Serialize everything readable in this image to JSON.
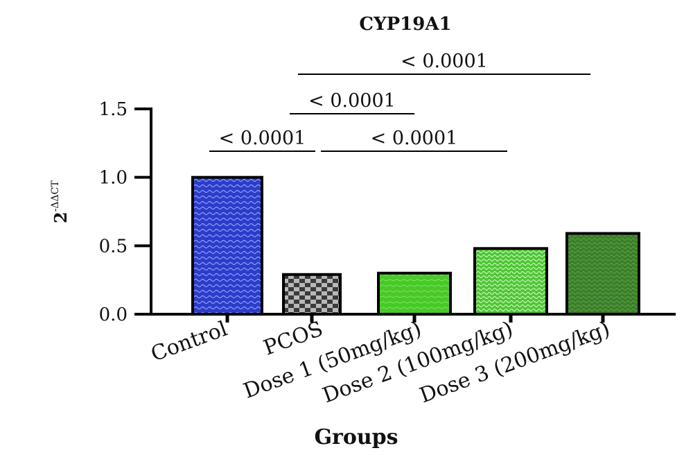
{
  "chart_data": {
    "type": "bar",
    "title": "CYP19A1",
    "xlabel": "Groups",
    "ylabel_base": "2",
    "ylabel_sup": "-ΔΔCT",
    "ylim": [
      0,
      1.5
    ],
    "yticks": [
      "0.0",
      "0.5",
      "1.0",
      "1.5"
    ],
    "ytick_values": [
      0,
      0.5,
      1.0,
      1.5
    ],
    "categories": [
      "Control",
      "PCOS",
      "Dose 1 (50mg/kg)",
      "Dose 2 (100mg/kg)",
      "Dose 3 (200mg/kg)"
    ],
    "values": [
      1.0,
      0.29,
      0.3,
      0.48,
      0.59
    ],
    "bar_colors": [
      "#2a3fc8",
      "#5a5a5a",
      "#4ccc2a",
      "#5fd13a",
      "#3f8a2c"
    ],
    "significance": [
      {
        "label": "< 0.0001",
        "from": 0,
        "to": 1,
        "level": 1
      },
      {
        "label": "< 0.0001",
        "from": 1,
        "to": 3,
        "level": 1
      },
      {
        "label": "< 0.0001",
        "from": 1,
        "to": 2,
        "level": 2
      },
      {
        "label": "< 0.0001",
        "from": 1,
        "to": 4,
        "level": 3
      }
    ]
  }
}
